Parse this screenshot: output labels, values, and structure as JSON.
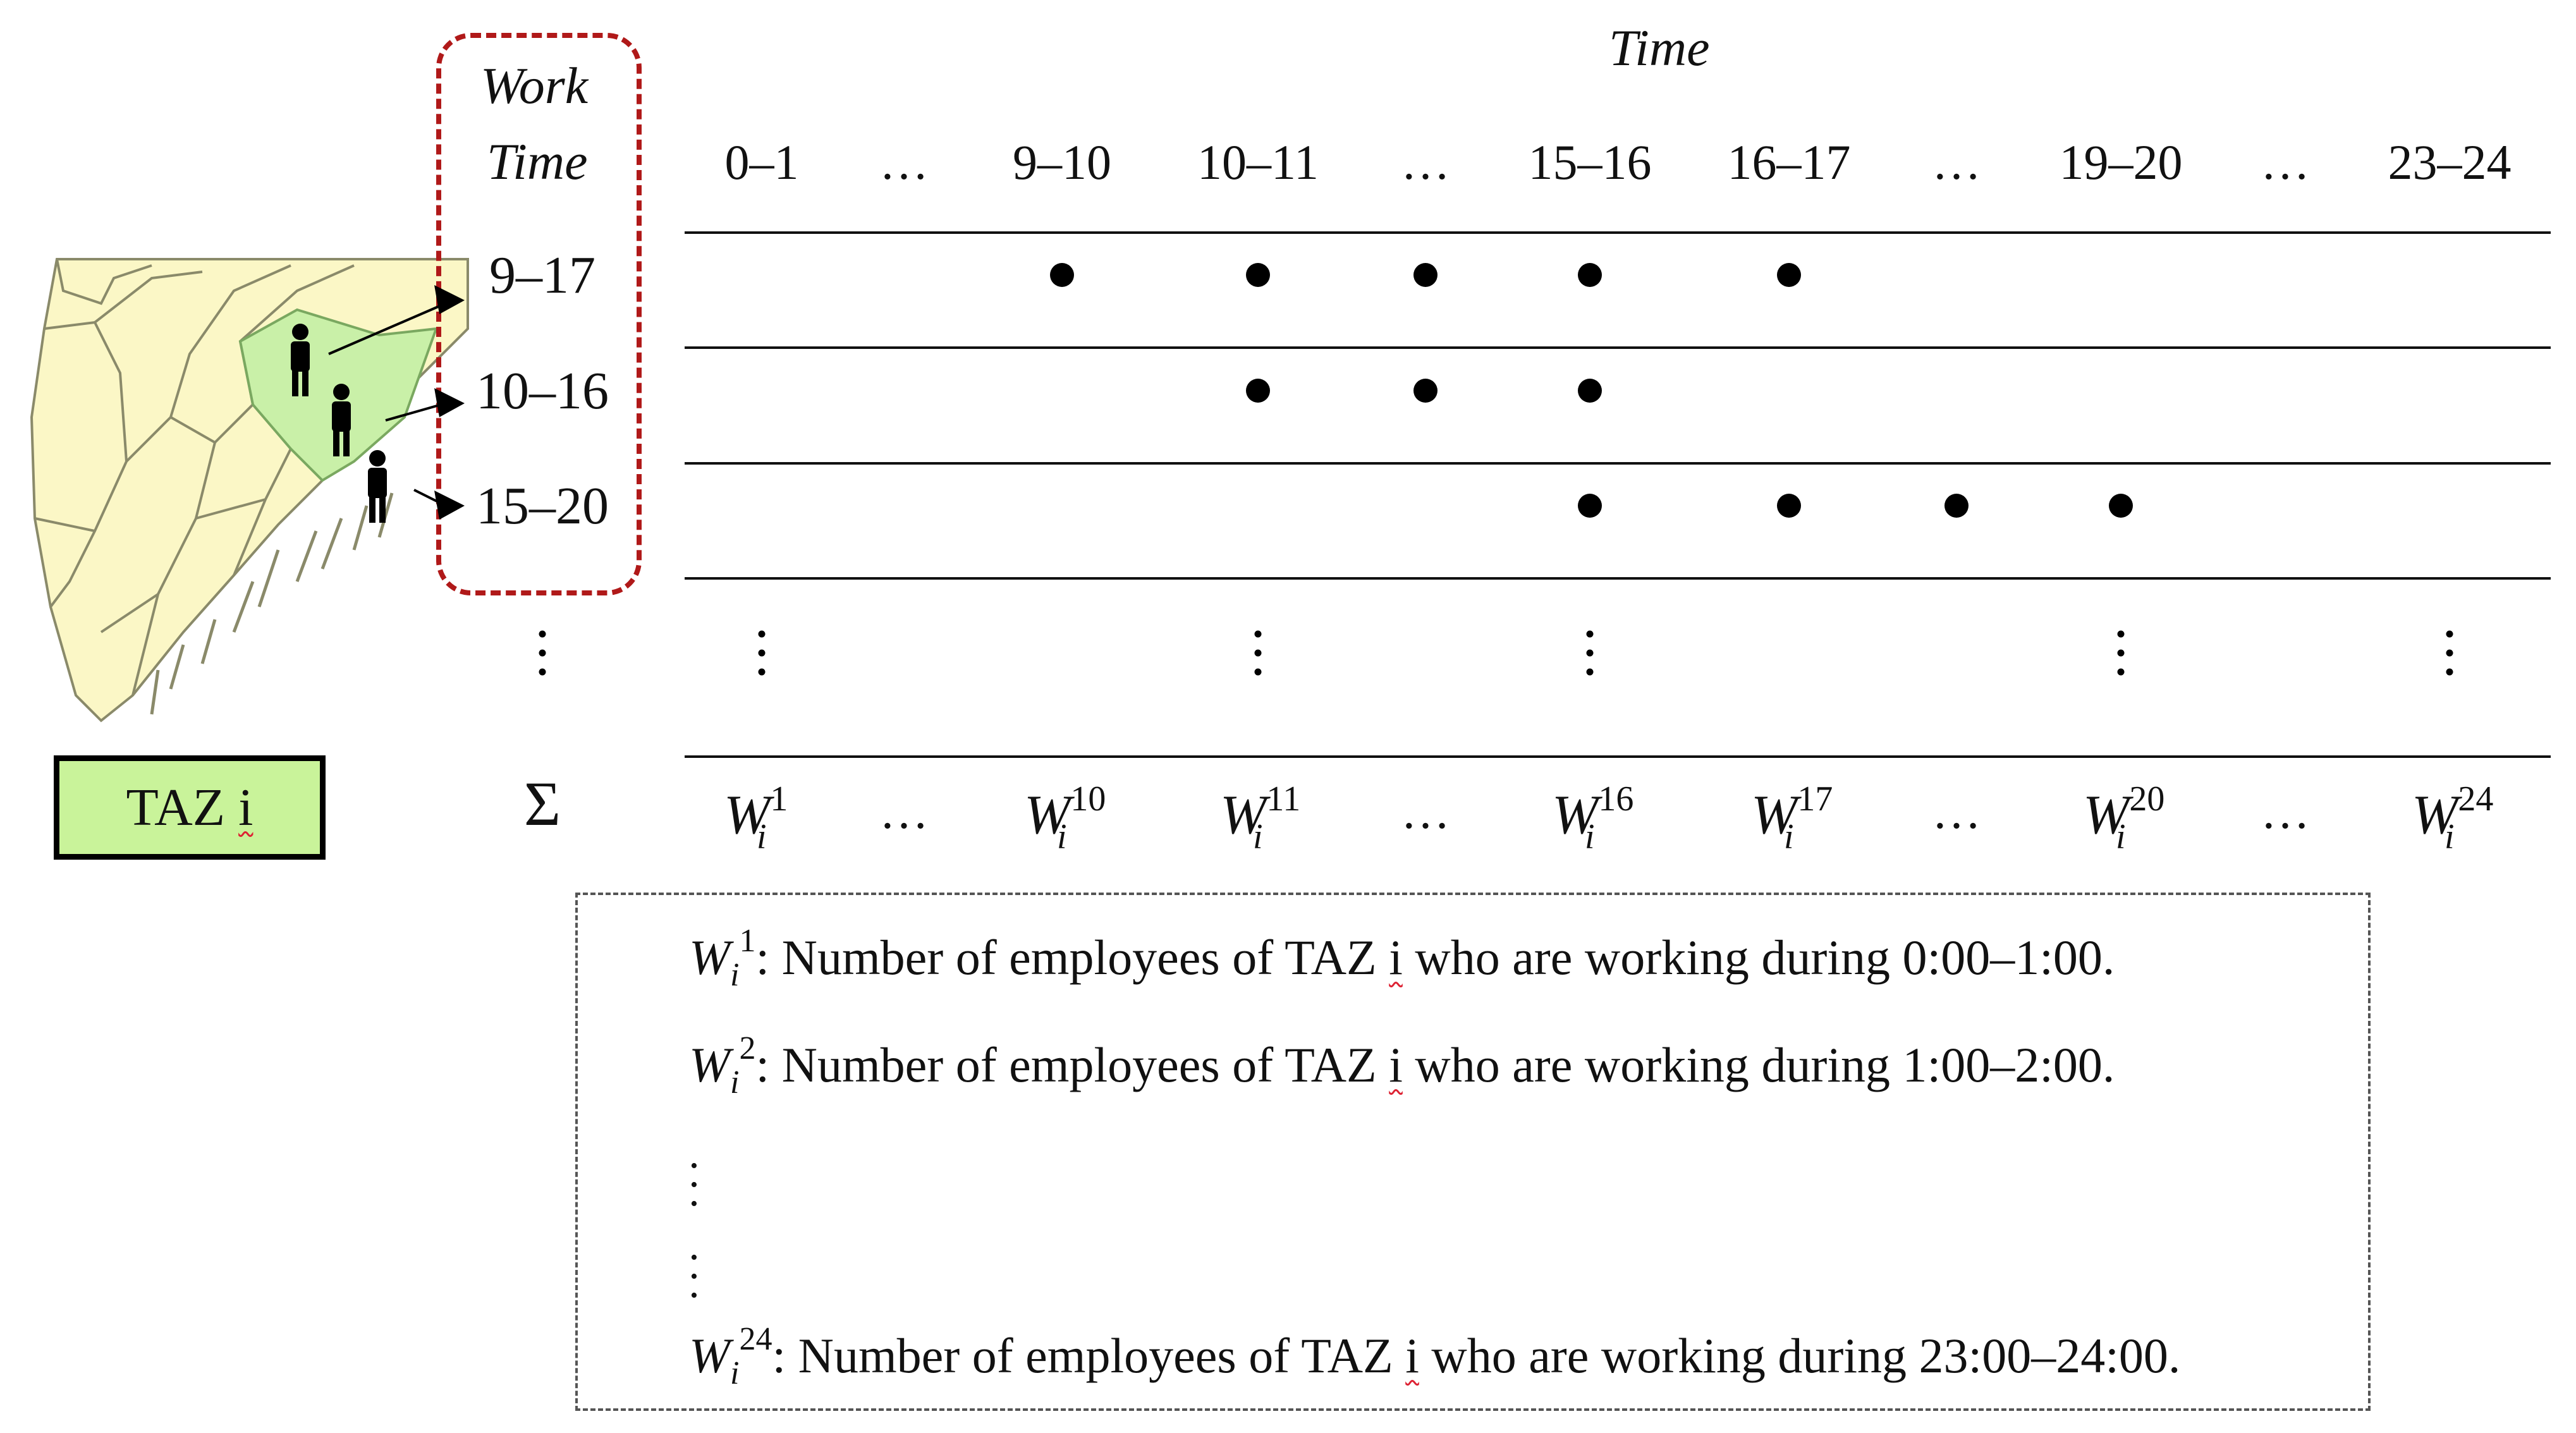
{
  "title": "Time",
  "work_time_header": [
    "Work",
    "Time"
  ],
  "time_columns": [
    "0–1",
    "…",
    "9–10",
    "10–11",
    "…",
    "15–16",
    "16–17",
    "…",
    "19–20",
    "…",
    "23–24"
  ],
  "work_time_rows": [
    {
      "label": "9–17",
      "active_columns": [
        2,
        3,
        4,
        5,
        6
      ]
    },
    {
      "label": "10–16",
      "active_columns": [
        3,
        4,
        5
      ]
    },
    {
      "label": "15–20",
      "active_columns": [
        5,
        6,
        7,
        8
      ]
    }
  ],
  "vdots_row_columns": [
    0,
    3,
    5,
    8,
    10
  ],
  "sum_symbol": "Σ",
  "sum_row": [
    {
      "base": "W",
      "sub": "i",
      "sup": "1"
    },
    {
      "text": "…"
    },
    {
      "base": "W",
      "sub": "i",
      "sup": "10"
    },
    {
      "base": "W",
      "sub": "i",
      "sup": "11"
    },
    {
      "text": "…"
    },
    {
      "base": "W",
      "sub": "i",
      "sup": "16"
    },
    {
      "base": "W",
      "sub": "i",
      "sup": "17"
    },
    {
      "text": "…"
    },
    {
      "base": "W",
      "sub": "i",
      "sup": "20"
    },
    {
      "text": "…"
    },
    {
      "base": "W",
      "sub": "i",
      "sup": "24"
    }
  ],
  "taz_label": {
    "prefix": "TAZ ",
    "index": "i"
  },
  "definitions": [
    {
      "sup": "1",
      "text_before": ": Number of employees of TAZ ",
      "index": "i",
      "text_after": " who are working during 0:00–1:00."
    },
    {
      "sup": "2",
      "text_before": ": Number of employees of TAZ ",
      "index": "i",
      "text_after": " who are working during 1:00–2:00."
    },
    {
      "sup": "24",
      "text_before": ": Number of employees of TAZ ",
      "index": "i",
      "text_after": " who are working during 23:00–24:00."
    }
  ],
  "colors": {
    "taz_fill": "#c9f39a",
    "frame": "#b01919",
    "map_fill": "#fbf7c6",
    "map_highlight": "#c9f0a8"
  }
}
